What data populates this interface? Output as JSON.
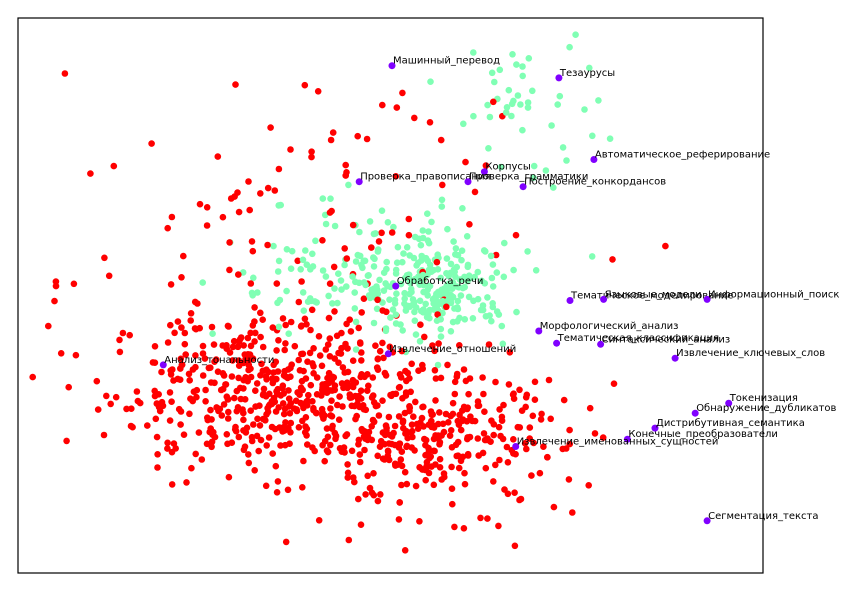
{
  "chart_data": {
    "type": "scatter",
    "title": "",
    "xlabel": "",
    "ylabel": "",
    "xlim": [
      0,
      100
    ],
    "ylim": [
      0,
      100
    ],
    "grid": false,
    "axes_ticks": false,
    "colors": {
      "cluster_red": "#ff0000",
      "cluster_green": "#80ffb4",
      "labeled_point": "#8000ff",
      "frame": "#000000"
    },
    "clusters": [
      {
        "color": "#ff0000",
        "count": 900,
        "blobs": [
          {
            "cx": 34,
            "cy": 33,
            "sx": 11,
            "sy": 7,
            "w": 0.55
          },
          {
            "cx": 55,
            "cy": 24,
            "sx": 9,
            "sy": 6,
            "w": 0.35
          },
          {
            "cx": 40,
            "cy": 60,
            "sx": 16,
            "sy": 14,
            "w": 0.1
          }
        ]
      },
      {
        "color": "#80ffb4",
        "count": 380,
        "blobs": [
          {
            "cx": 56,
            "cy": 51,
            "sx": 5,
            "sy": 4,
            "w": 0.6
          },
          {
            "cx": 45,
            "cy": 55,
            "sx": 9,
            "sy": 6,
            "w": 0.28
          },
          {
            "cx": 68,
            "cy": 84,
            "sx": 5,
            "sy": 7,
            "w": 0.12
          }
        ]
      }
    ],
    "extra_red": [
      [
        29.2,
        88.0
      ],
      [
        38.5,
        87.9
      ],
      [
        40.3,
        86.8
      ],
      [
        51.6,
        86.5
      ],
      [
        48.9,
        84.3
      ],
      [
        53.2,
        82.0
      ],
      [
        55.3,
        81.2
      ],
      [
        45.6,
        78.7
      ],
      [
        56.8,
        78.0
      ],
      [
        42.1,
        65.2
      ],
      [
        44.1,
        72.2
      ],
      [
        27.5,
        64.1
      ],
      [
        62.8,
        73.4
      ],
      [
        65.0,
        82.3
      ],
      [
        63.8,
        84.9
      ],
      [
        86.9,
        58.9
      ],
      [
        79.8,
        56.5
      ],
      [
        11.6,
        56.8
      ],
      [
        5.1,
        51.7
      ],
      [
        4.9,
        49.0
      ],
      [
        7.5,
        52.1
      ],
      [
        25.4,
        65.9
      ],
      [
        33.5,
        59.1
      ],
      [
        76.8,
        29.7
      ],
      [
        80.0,
        34.1
      ],
      [
        74.4,
        10.9
      ],
      [
        76.6,
        15.8
      ],
      [
        36.0,
        5.6
      ],
      [
        66.7,
        4.9
      ],
      [
        63.0,
        9.8
      ]
    ],
    "labeled_points": [
      {
        "label": "Машинный_перевод",
        "x": 50.2,
        "y": 91.4
      },
      {
        "label": "Тезаурусы",
        "x": 72.6,
        "y": 89.2
      },
      {
        "label": "Автоматическое_реферирование",
        "x": 77.3,
        "y": 74.5
      },
      {
        "label": "Корпусы",
        "x": 62.6,
        "y": 72.3
      },
      {
        "label": "Проверка_правописания",
        "x": 45.8,
        "y": 70.5
      },
      {
        "label": "Проверка_грамматики",
        "x": 60.4,
        "y": 70.5
      },
      {
        "label": "Построение_конкордансов",
        "x": 67.8,
        "y": 69.6
      },
      {
        "label": "Обработка_речи",
        "x": 50.7,
        "y": 51.7
      },
      {
        "label": "Тематическое_моделирование",
        "x": 74.1,
        "y": 49.1
      },
      {
        "label": "Языковые_модели",
        "x": 78.6,
        "y": 49.3
      },
      {
        "label": "Информационный_поиск",
        "x": 92.5,
        "y": 49.3
      },
      {
        "label": "Морфологический_анализ",
        "x": 69.9,
        "y": 43.6
      },
      {
        "label": "Тематическая_классификация",
        "x": 72.3,
        "y": 41.4
      },
      {
        "label": "Синтаксический_анализ",
        "x": 78.2,
        "y": 41.2
      },
      {
        "label": "Извлечение_отношений",
        "x": 49.7,
        "y": 39.5
      },
      {
        "label": "Анализ_тональности",
        "x": 19.5,
        "y": 37.5
      },
      {
        "label": "Извлечение_ключевых_слов",
        "x": 88.2,
        "y": 38.7
      },
      {
        "label": "Токенизация",
        "x": 95.4,
        "y": 30.6
      },
      {
        "label": "Обнаружение_дубликатов",
        "x": 90.9,
        "y": 28.8
      },
      {
        "label": "Дистрибутивная_семантика",
        "x": 85.5,
        "y": 26.1
      },
      {
        "label": "Конечные_преобразователи",
        "x": 81.8,
        "y": 24.1
      },
      {
        "label": "Извлечение_именованных_сущностей",
        "x": 66.8,
        "y": 22.8
      },
      {
        "label": "Сегментация_текста",
        "x": 92.5,
        "y": 9.4
      }
    ]
  }
}
